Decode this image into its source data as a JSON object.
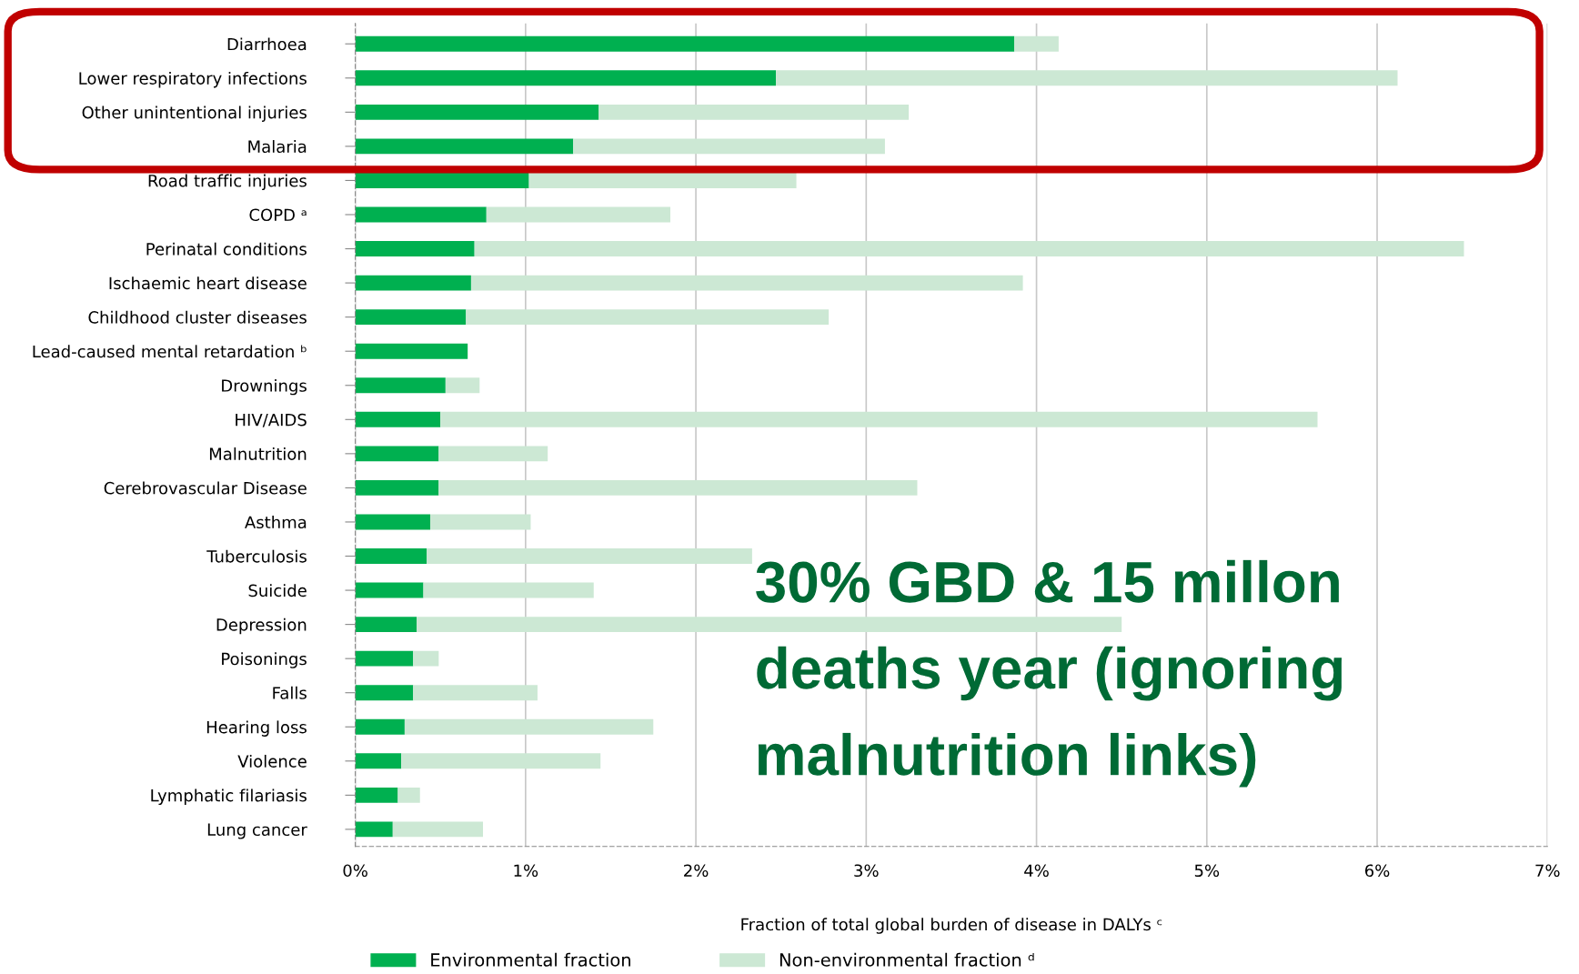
{
  "chart_data": {
    "type": "bar",
    "orientation": "horizontal",
    "stacked": true,
    "categories": [
      "Diarrhoea",
      "Lower respiratory infections",
      "Other unintentional injuries",
      "Malaria",
      "Road traffic injuries",
      "COPD ᵃ",
      "Perinatal conditions",
      "Ischaemic heart disease",
      "Childhood cluster diseases",
      "Lead-caused mental retardation ᵇ",
      "Drownings",
      "HIV/AIDS",
      "Malnutrition",
      "Cerebrovascular Disease",
      "Asthma",
      "Tuberculosis",
      "Suicide",
      "Depression",
      "Poisonings",
      "Falls",
      "Hearing loss",
      "Violence",
      "Lymphatic filariasis",
      "Lung cancer"
    ],
    "series": [
      {
        "name": "Environmental fraction",
        "color": "#00b050",
        "values": [
          3.87,
          2.47,
          1.43,
          1.28,
          1.02,
          0.77,
          0.7,
          0.68,
          0.65,
          0.66,
          0.53,
          0.5,
          0.49,
          0.49,
          0.44,
          0.42,
          0.4,
          0.36,
          0.34,
          0.34,
          0.29,
          0.27,
          0.25,
          0.22
        ]
      },
      {
        "name": "Non-environmental fraction ᵈ",
        "color": "#cce8d4",
        "values": [
          0.26,
          3.65,
          1.82,
          1.83,
          1.57,
          1.08,
          5.81,
          3.24,
          2.13,
          0,
          0.2,
          5.15,
          0.64,
          2.81,
          0.59,
          1.91,
          1.0,
          4.14,
          0.15,
          0.73,
          1.46,
          1.17,
          0.13,
          0.53
        ]
      }
    ],
    "xlim": [
      0,
      7
    ],
    "xticks": [
      {
        "value": 0,
        "label": "0%"
      },
      {
        "value": 1,
        "label": "1%"
      },
      {
        "value": 2,
        "label": "2%"
      },
      {
        "value": 3,
        "label": "3%"
      },
      {
        "value": 4,
        "label": "4%"
      },
      {
        "value": 5,
        "label": "5%"
      },
      {
        "value": 6,
        "label": "6%"
      },
      {
        "value": 7,
        "label": "7%"
      }
    ],
    "xlabel": "Fraction of total global burden of disease in DALYs ᶜ",
    "grid": "x",
    "legend": "bottom",
    "annotations": [
      "30% GBD & 15 millon",
      "deaths year (ignoring",
      "malnutrition links)"
    ]
  }
}
